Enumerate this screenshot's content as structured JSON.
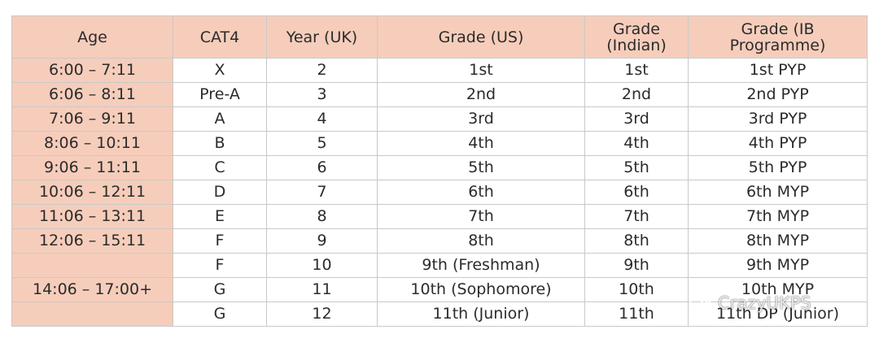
{
  "headers": [
    [
      "Age"
    ],
    [
      "CAT4"
    ],
    [
      "Year (UK)"
    ],
    [
      "Grade (US)"
    ],
    [
      "Grade",
      "(Indian)"
    ],
    [
      "Grade (IB",
      "Programme)"
    ]
  ],
  "rows": [
    [
      "6:00 – 7:11",
      "X",
      "2",
      "1st",
      "1st",
      "1st PYP"
    ],
    [
      "6:06 – 8:11",
      "Pre-A",
      "3",
      "2nd",
      "2nd",
      "2nd PYP"
    ],
    [
      "7:06 – 9:11",
      "A",
      "4",
      "3rd",
      "3rd",
      "3rd PYP"
    ],
    [
      "8:06 – 10:11",
      "B",
      "5",
      "4th",
      "4th",
      "4th PYP"
    ],
    [
      "9:06 – 11:11",
      "C",
      "6",
      "5th",
      "5th",
      "5th PYP"
    ],
    [
      "10:06 – 12:11",
      "D",
      "7",
      "6th",
      "6th",
      "6th MYP"
    ],
    [
      "11:06 – 13:11",
      "E",
      "8",
      "7th",
      "7th",
      "7th MYP"
    ],
    [
      "12:06 – 15:11",
      "F",
      "9",
      "8th",
      "8th",
      "8th MYP"
    ],
    [
      "",
      "F",
      "10",
      "9th (Freshman)",
      "9th",
      "9th MYP"
    ],
    [
      "14:06 – 17:00+",
      "G",
      "11",
      "10th (Sophomore)",
      "10th",
      "10th MYP"
    ],
    [
      "",
      "G",
      "12",
      "11th (Junior)",
      "11th",
      "11th DP (Junior)"
    ]
  ],
  "watermark": {
    "text": "CrazyUKPS",
    "icon": "wechat-icon"
  },
  "colors": {
    "age_fill": "#f6cdbb",
    "border": "#c9c9c9",
    "text": "#2b2b2b"
  }
}
